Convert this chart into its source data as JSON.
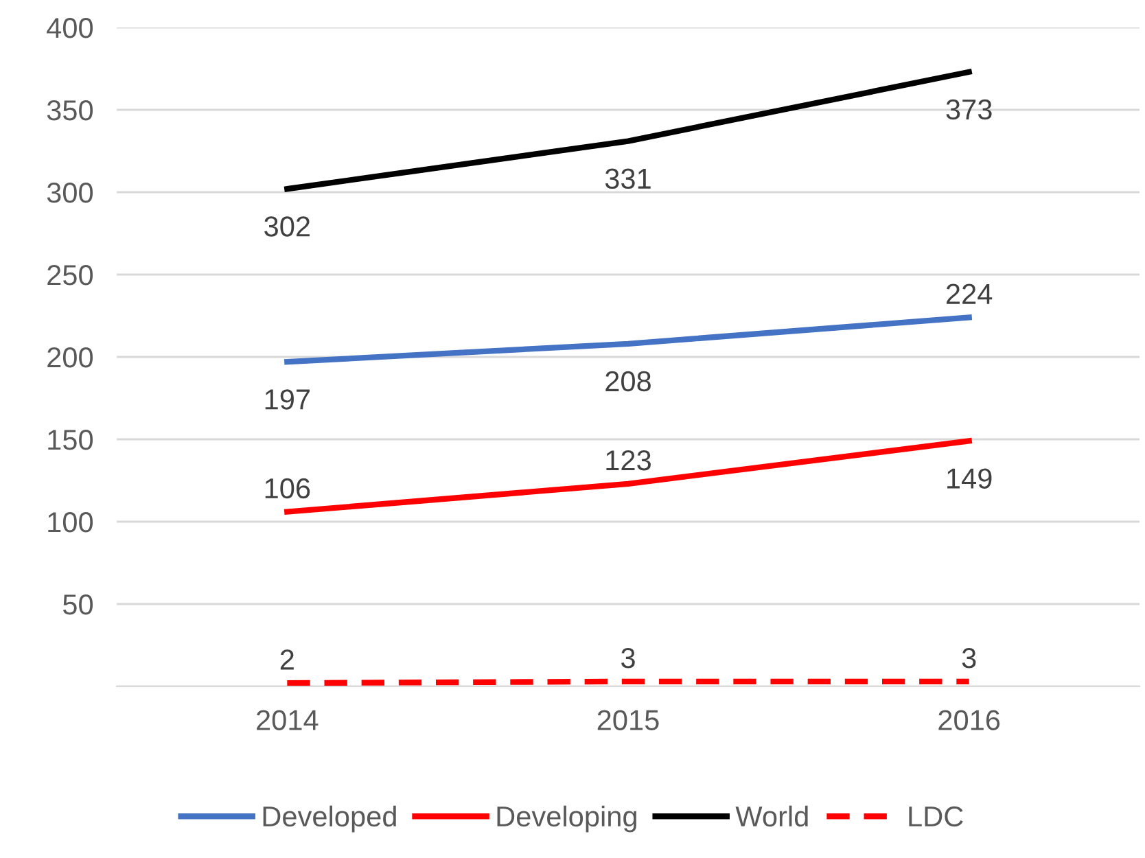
{
  "chart_data": {
    "type": "line",
    "categories": [
      "2014",
      "2015",
      "2016"
    ],
    "series": [
      {
        "name": "Developed",
        "color": "#4472c4",
        "values": [
          197,
          208,
          224
        ]
      },
      {
        "name": "Developing",
        "color": "#ff0000",
        "values": [
          106,
          123,
          149
        ]
      },
      {
        "name": "World",
        "color": "#000000",
        "values": [
          302,
          331,
          373
        ]
      },
      {
        "name": "LDC",
        "color": "#ff0000",
        "values": [
          2,
          3,
          3
        ],
        "line_style": "dashed"
      }
    ],
    "ylim": [
      0,
      400
    ],
    "yticks": [
      {
        "value": 0,
        "label": null
      },
      50,
      100,
      150,
      200,
      250,
      300,
      350,
      400
    ],
    "grid": "y",
    "legend": "bottom",
    "data_labels": true,
    "marker": "none",
    "line_style": "solid"
  }
}
